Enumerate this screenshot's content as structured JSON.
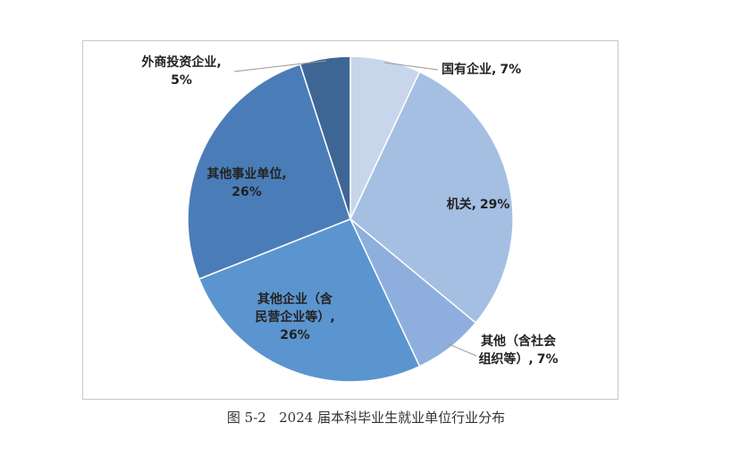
{
  "chart_data": {
    "type": "pie",
    "title": "图 5-2   2024 届本科毕业生就业单位行业分布",
    "categories": [
      "国有企业,",
      "机关,",
      "其他（含社会组织等）,",
      "其他企业（含民营企业等）,",
      "其他事业单位,",
      "外商投资企业,"
    ],
    "values": [
      7,
      29,
      7,
      26,
      26,
      5
    ],
    "value_labels": [
      "7%",
      "29%",
      "7%",
      "26%",
      "26%",
      "5%"
    ],
    "colors": [
      "#c7d6eb",
      "#a5bfe3",
      "#8eafdd",
      "#5b95cf",
      "#4a7db7",
      "#3e6695"
    ]
  }
}
